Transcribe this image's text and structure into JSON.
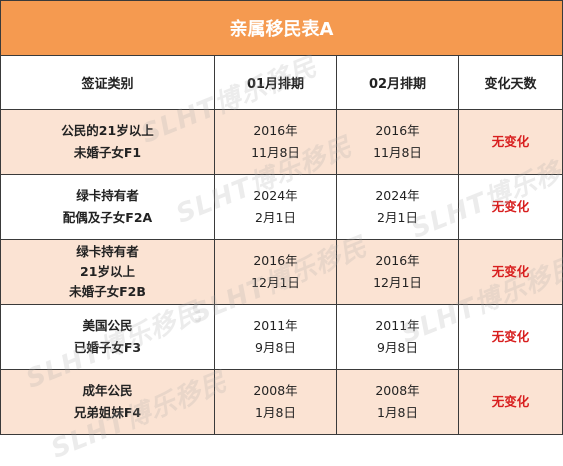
{
  "title": "亲属移民表A",
  "headers": {
    "category": "签证类别",
    "month1": "01月排期",
    "month2": "02月排期",
    "change": "变化天数"
  },
  "rows": [
    {
      "category_lines": [
        "公民的21岁以上",
        "未婚子女F1"
      ],
      "m1": [
        "2016年",
        "11月8日"
      ],
      "m2": [
        "2016年",
        "11月8日"
      ],
      "change": "无变化"
    },
    {
      "category_lines": [
        "绿卡持有者",
        "配偶及子女F2A"
      ],
      "m1": [
        "2024年",
        "2月1日"
      ],
      "m2": [
        "2024年",
        "2月1日"
      ],
      "change": "无变化"
    },
    {
      "category_lines": [
        "绿卡持有者",
        "21岁以上",
        "未婚子女F2B"
      ],
      "m1": [
        "2016年",
        "12月1日"
      ],
      "m2": [
        "2016年",
        "12月1日"
      ],
      "change": "无变化"
    },
    {
      "category_lines": [
        "美国公民",
        "已婚子女F3"
      ],
      "m1": [
        "2011年",
        "9月8日"
      ],
      "m2": [
        "2011年",
        "9月8日"
      ],
      "change": "无变化"
    },
    {
      "category_lines": [
        "成年公民",
        "兄弟姐妹F4"
      ],
      "m1": [
        "2008年",
        "1月8日"
      ],
      "m2": [
        "2008年",
        "1月8日"
      ],
      "change": "无变化"
    }
  ],
  "watermark": "SLHT博乐移民",
  "colors": {
    "title_bg": "#f59a50",
    "shade_bg": "#fbe3d3",
    "change_text": "#d81e1e"
  }
}
